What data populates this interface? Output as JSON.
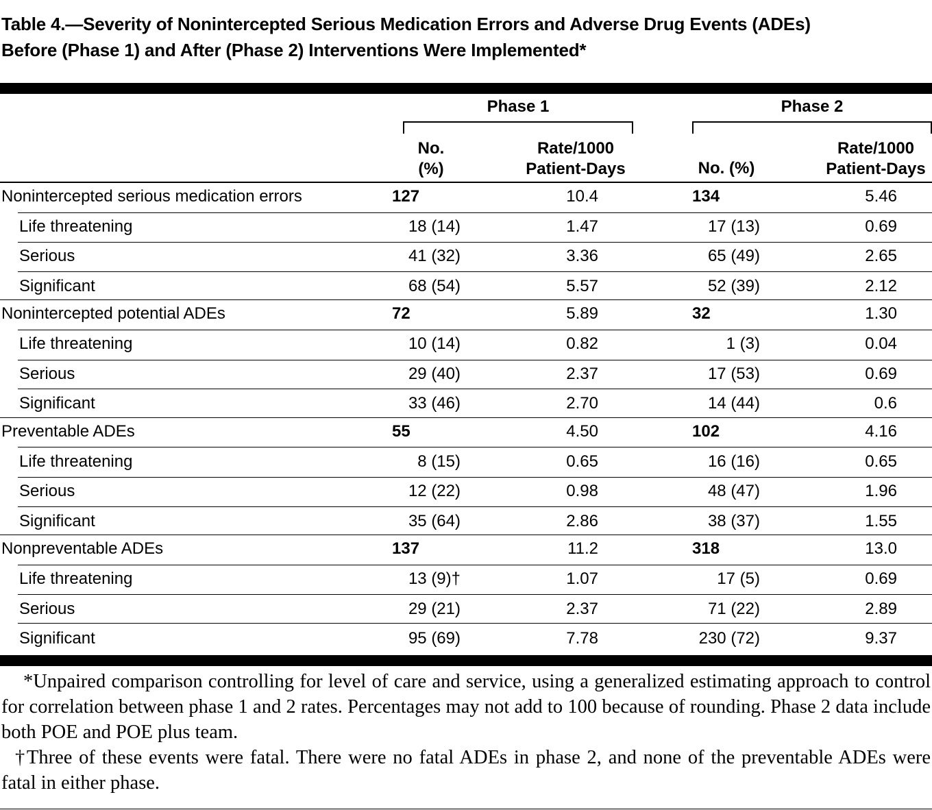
{
  "title": {
    "line1": "Table 4.—Severity of Nonintercepted Serious Medication Errors and Adverse Drug Events (ADEs)",
    "line2": "Before (Phase 1) and After (Phase 2) Interventions Were Implemented*"
  },
  "header": {
    "phase1": "Phase 1",
    "phase2": "Phase 2",
    "p1_no_line1": "No.",
    "p1_no_line2": "(%)",
    "p1_rate_line1": "Rate/1000",
    "p1_rate_line2": "Patient-Days",
    "p2_no": "No. (%)",
    "p2_rate_line1": "Rate/1000",
    "p2_rate_line2": "Patient-Days"
  },
  "rows": [
    {
      "label": "Nonintercepted serious medication errors",
      "p1_no": "127",
      "p1_rate": "10.4",
      "p2_no": "134",
      "p2_rate": "5.46"
    },
    {
      "label": "Life threatening",
      "p1_no": "18 (14)",
      "p1_rate": "1.47",
      "p2_no": "17 (13)",
      "p2_rate": "0.69"
    },
    {
      "label": "Serious",
      "p1_no": "41 (32)",
      "p1_rate": "3.36",
      "p2_no": "65 (49)",
      "p2_rate": "2.65"
    },
    {
      "label": "Significant",
      "p1_no": "68 (54)",
      "p1_rate": "5.57",
      "p2_no": "52 (39)",
      "p2_rate": "2.12"
    },
    {
      "label": "Nonintercepted potential ADEs",
      "p1_no": "72",
      "p1_rate": "5.89",
      "p2_no": "32",
      "p2_rate": "1.30"
    },
    {
      "label": "Life threatening",
      "p1_no": "10 (14)",
      "p1_rate": "0.82",
      "p2_no": "1 (3)",
      "p2_rate": "0.04"
    },
    {
      "label": "Serious",
      "p1_no": "29 (40)",
      "p1_rate": "2.37",
      "p2_no": "17 (53)",
      "p2_rate": "0.69"
    },
    {
      "label": "Significant",
      "p1_no": "33 (46)",
      "p1_rate": "2.70",
      "p2_no": "14 (44)",
      "p2_rate": "0.6"
    },
    {
      "label": "Preventable ADEs",
      "p1_no": "55",
      "p1_rate": "4.50",
      "p2_no": "102",
      "p2_rate": "4.16"
    },
    {
      "label": "Life threatening",
      "p1_no": "8 (15)",
      "p1_rate": "0.65",
      "p2_no": "16 (16)",
      "p2_rate": "0.65"
    },
    {
      "label": "Serious",
      "p1_no": "12 (22)",
      "p1_rate": "0.98",
      "p2_no": "48 (47)",
      "p2_rate": "1.96"
    },
    {
      "label": "Significant",
      "p1_no": "35 (64)",
      "p1_rate": "2.86",
      "p2_no": "38 (37)",
      "p2_rate": "1.55"
    },
    {
      "label": "Nonpreventable ADEs",
      "p1_no": "137",
      "p1_rate": "11.2",
      "p2_no": "318",
      "p2_rate": "13.0"
    },
    {
      "label": "Life threatening",
      "p1_no": "13 (9)†",
      "p1_rate": "1.07",
      "p2_no": "17 (5)",
      "p2_rate": "0.69"
    },
    {
      "label": "Serious",
      "p1_no": "29 (21)",
      "p1_rate": "2.37",
      "p2_no": "71 (22)",
      "p2_rate": "2.89"
    },
    {
      "label": "Significant",
      "p1_no": "95 (69)",
      "p1_rate": "7.78",
      "p2_no": "230 (72)",
      "p2_rate": "9.37"
    }
  ],
  "footnotes": {
    "note1": "*Unpaired comparison controlling for level of care and service, using a generalized estimating approach to control for correlation between phase 1 and 2 rates. Percentages may not add to 100 because of rounding. Phase 2 data include both POE and POE plus team.",
    "note2": "†Three of these events were fatal. There were no fatal ADEs in phase 2, and none of the preventable ADEs were fatal in either phase."
  }
}
